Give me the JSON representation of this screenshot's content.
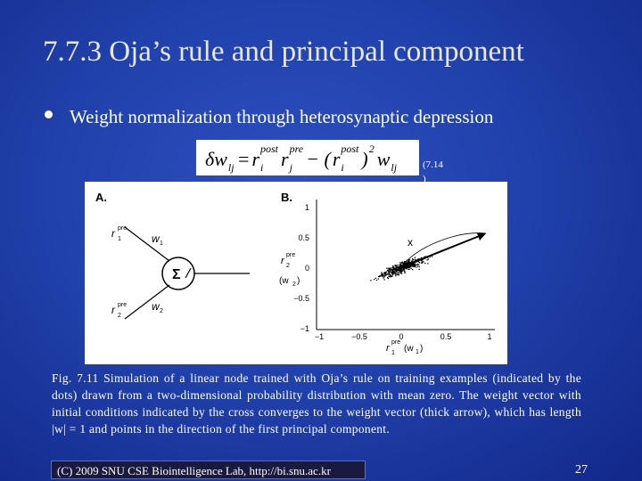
{
  "title": "7.7.3 Oja’s rule and principal component",
  "bullet": "Weight normalization through heterosynaptic depression",
  "equation": [
    {
      "text": "δw",
      "sub": "lj"
    },
    {
      "text": " = "
    },
    {
      "text": "r",
      "sup": "post",
      "sub": "i"
    },
    {
      "text": "r",
      "sup": "pre",
      "sub": "j"
    },
    {
      "text": " − ("
    },
    {
      "text": "r",
      "sup": "post",
      "sub": "i"
    },
    {
      "text": ")",
      "sup": "2"
    },
    {
      "text": "w",
      "sub": "lj"
    }
  ],
  "equation_number": [
    "(7.14",
    ")"
  ],
  "figure": {
    "panel_a": {
      "label": "A.",
      "input1": "r",
      "input1_sup": "pre",
      "input1_sub": "1",
      "w1": "w",
      "w1_sub": "1",
      "input2": "r",
      "input2_sup": "pre",
      "input2_sub": "2",
      "w2": "w",
      "w2_sub": "2",
      "sum": "Σ"
    },
    "panel_b": {
      "label": "B.",
      "yticks": [
        "1",
        "0.5",
        "0",
        "−0.5",
        "−1"
      ],
      "xticks": [
        "−1",
        "−0.5",
        "0",
        "0.5",
        "1"
      ],
      "cross": "x",
      "ylabel": "r",
      "ylabel_sup": "pre",
      "ylabel_sub": "2",
      "ylabel2": "(w",
      "ylabel2_sub": "2",
      "ylabel2_end": ")",
      "xlabel": "r",
      "xlabel_sup": "pre",
      "xlabel_sub": "1",
      "xlabel2": "(w",
      "xlabel2_sub": "1",
      "xlabel2_end": ")"
    }
  },
  "caption": "Fig. 7.11 Simulation of a linear node trained with Oja’s rule on training examples (indicated by the dots) drawn from a two-dimensional probability distribution with mean zero. The weight vector with initial conditions indicated by the cross converges to the weight vector (thick arrow), which has length |w| = 1 and points in the direction of the first principal component.",
  "footer": "(C) 2009 SNU CSE Biointelligence Lab,   http://bi.snu.ac.kr",
  "page_number": "27"
}
